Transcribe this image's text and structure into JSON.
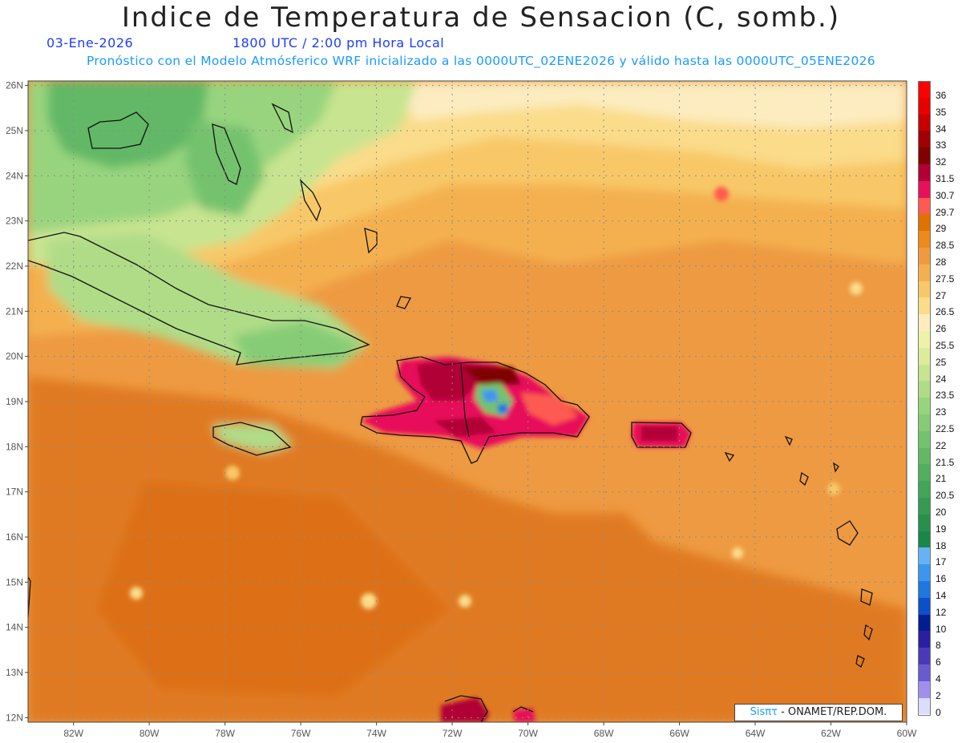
{
  "title": "Indice de Temperatura de Sensacion (C, somb.)",
  "date": "03-Ene-2026",
  "time": "1800 UTC / 2:00 pm Hora Local",
  "forecast_note": "Pronóstico con el Modelo Atmósferico WRF inicializado a las 0000UTC_02ENE2026 y válido hasta las  0000UTC_05ENE2026",
  "credit": {
    "brand": "Sisπτ",
    "org": "- ONAMET/REP.DOM."
  },
  "map": {
    "lon_range": [
      -83.2,
      -60.0
    ],
    "lat_range": [
      11.9,
      26.1
    ],
    "lon_ticks": [
      "82W",
      "80W",
      "78W",
      "76W",
      "74W",
      "72W",
      "70W",
      "68W",
      "66W",
      "64W",
      "62W",
      "60W"
    ],
    "lat_ticks": [
      "26N",
      "25N",
      "24N",
      "23N",
      "22N",
      "21N",
      "20N",
      "19N",
      "18N",
      "17N",
      "16N",
      "15N",
      "14N",
      "13N",
      "12N"
    ]
  },
  "legend": {
    "levels": [
      {
        "label": "36",
        "color": "#ff0000"
      },
      {
        "label": "35",
        "color": "#e60000"
      },
      {
        "label": "34",
        "color": "#c80000"
      },
      {
        "label": "33",
        "color": "#a00000"
      },
      {
        "label": "32",
        "color": "#800000"
      },
      {
        "label": "31.5",
        "color": "#b00035"
      },
      {
        "label": "30.7",
        "color": "#e8105a"
      },
      {
        "label": "29.7",
        "color": "#ff5a50"
      },
      {
        "label": "29",
        "color": "#e07200"
      },
      {
        "label": "28.5",
        "color": "#ec8a1a"
      },
      {
        "label": "28",
        "color": "#f09a40"
      },
      {
        "label": "27.5",
        "color": "#f4b050"
      },
      {
        "label": "27",
        "color": "#f8c868"
      },
      {
        "label": "26.5",
        "color": "#fadc8a"
      },
      {
        "label": "26",
        "color": "#fcecc0"
      },
      {
        "label": "25.5",
        "color": "#eef2a8"
      },
      {
        "label": "25",
        "color": "#dcec9c"
      },
      {
        "label": "24",
        "color": "#c8e490"
      },
      {
        "label": "23.5",
        "color": "#b0dc88"
      },
      {
        "label": "23",
        "color": "#98d47e"
      },
      {
        "label": "22.5",
        "color": "#86cc76"
      },
      {
        "label": "22",
        "color": "#74c26e"
      },
      {
        "label": "21.5",
        "color": "#62b866"
      },
      {
        "label": "21",
        "color": "#52ae60"
      },
      {
        "label": "20.5",
        "color": "#44a45a"
      },
      {
        "label": "20",
        "color": "#369a54"
      },
      {
        "label": "19",
        "color": "#28904e"
      },
      {
        "label": "18",
        "color": "#1a8648"
      },
      {
        "label": "17",
        "color": "#64b4f4"
      },
      {
        "label": "16",
        "color": "#3c96f0"
      },
      {
        "label": "14",
        "color": "#1e78e0"
      },
      {
        "label": "12",
        "color": "#0a50c8"
      },
      {
        "label": "10",
        "color": "#001e90"
      },
      {
        "label": "8",
        "color": "#2c1ea0"
      },
      {
        "label": "6",
        "color": "#4a3ab8"
      },
      {
        "label": "4",
        "color": "#6a5ad0"
      },
      {
        "label": "2",
        "color": "#a090ec"
      },
      {
        "label": "0",
        "color": "#dcdcff"
      }
    ]
  }
}
